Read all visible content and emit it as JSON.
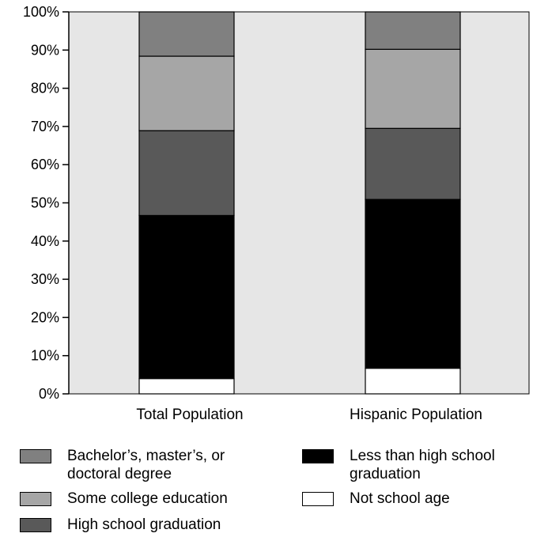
{
  "chart_data": {
    "type": "bar",
    "stacked": true,
    "y_axis": {
      "ylim": [
        0,
        100
      ],
      "ticks": [
        "0%",
        "10%",
        "20%",
        "30%",
        "40%",
        "50%",
        "60%",
        "70%",
        "80%",
        "90%",
        "100%"
      ]
    },
    "categories": [
      "Total Population",
      "Hispanic Population"
    ],
    "series": [
      {
        "name": "Not school age",
        "color": "#ffffff",
        "values": [
          4,
          6.7
        ]
      },
      {
        "name": "Less than high school graduation",
        "color": "#000000",
        "values": [
          42.7,
          44.2
        ]
      },
      {
        "name": "High school graduation",
        "color": "#595959",
        "values": [
          22.2,
          18.6
        ]
      },
      {
        "name": "Some college education",
        "color": "#a6a6a6",
        "values": [
          19.5,
          20.7
        ]
      },
      {
        "name": "Bachelor’s, master’s, or doctoral degree",
        "color": "#808080",
        "values": [
          11.6,
          9.8
        ]
      }
    ],
    "plot_background": "#e6e6e6",
    "grid": false
  },
  "legend": {
    "items": [
      {
        "label": "Bachelor’s, master’s, or\ndoctoral degree",
        "color": "#808080"
      },
      {
        "label": "Some college education",
        "color": "#a6a6a6"
      },
      {
        "label": "High school graduation",
        "color": "#595959"
      },
      {
        "label": "Less than high school\ngraduation",
        "color": "#000000"
      },
      {
        "label": "Not school age",
        "color": "#ffffff"
      }
    ]
  }
}
